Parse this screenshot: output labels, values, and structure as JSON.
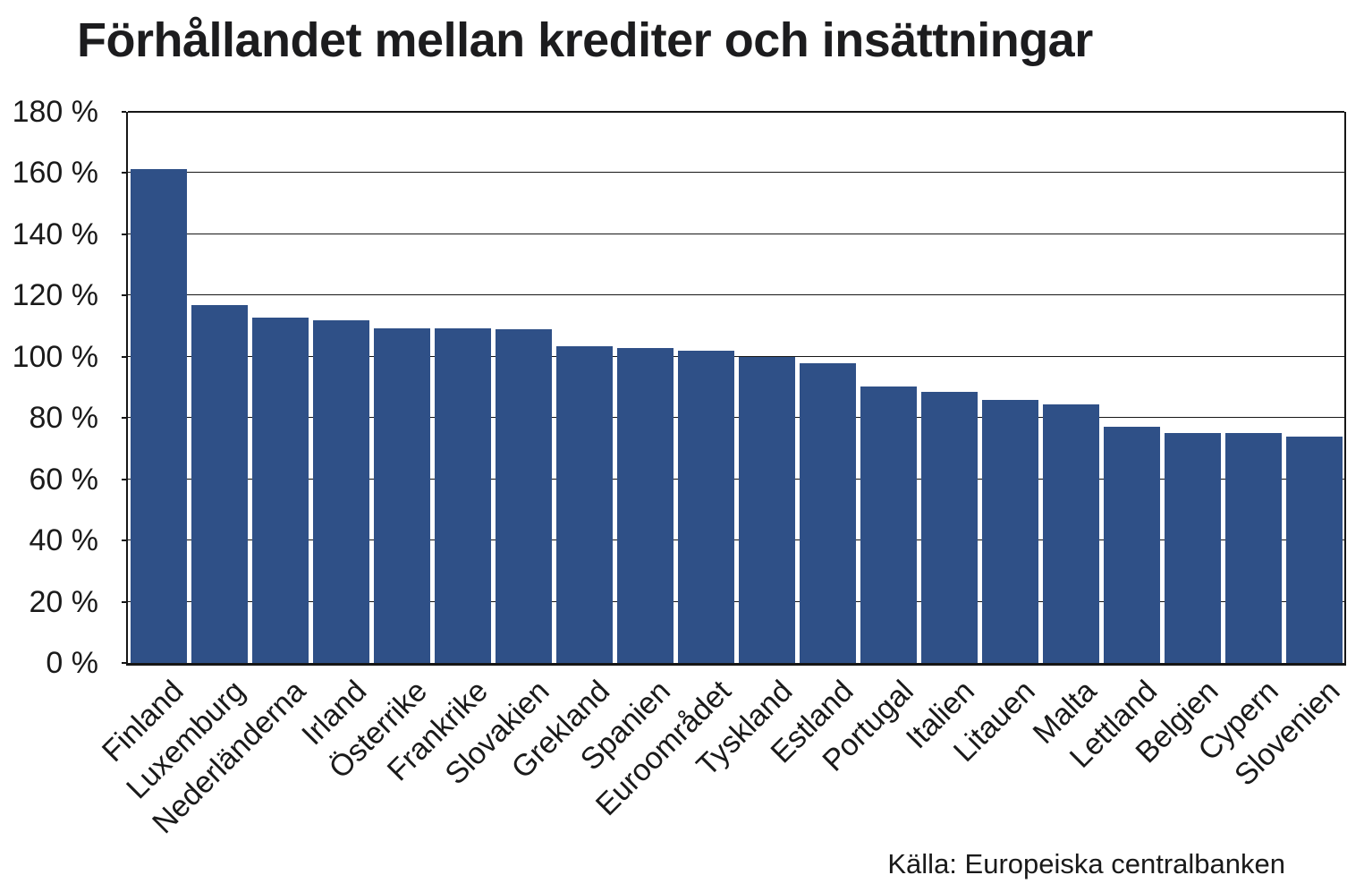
{
  "title": "Förhållandet mellan krediter och insättningar",
  "source": "Källa: Europeiska centralbanken",
  "colors": {
    "bar": "#2F5087",
    "axis": "#161616",
    "text": "#1a1a1a",
    "background": "#ffffff"
  },
  "chart_data": {
    "type": "bar",
    "title": "Förhållandet mellan krediter och insättningar",
    "categories": [
      "Finland",
      "Luxemburg",
      "Nederländerna",
      "Irland",
      "Österrike",
      "Frankrike",
      "Slovakien",
      "Grekland",
      "Spanien",
      "Euroområdet",
      "Tyskland",
      "Estland",
      "Portugal",
      "Italien",
      "Litauen",
      "Malta",
      "Lettland",
      "Belgien",
      "Cypern",
      "Slovenien"
    ],
    "values": [
      161.3,
      117.0,
      112.8,
      111.8,
      109.3,
      109.3,
      109.0,
      103.4,
      103.0,
      102.0,
      99.9,
      97.9,
      90.3,
      88.5,
      86.0,
      84.5,
      77.2,
      75.0,
      75.0,
      74.0
    ],
    "xlabel": "",
    "ylabel": "",
    "ylim": [
      0,
      180
    ],
    "y_tick_step": 20,
    "y_tick_suffix": " %",
    "grid": "horizontal",
    "legend": "none",
    "bar_color": "#2F5087",
    "x_label_rotation_deg": -45,
    "source": "Källa: Europeiska centralbanken"
  }
}
